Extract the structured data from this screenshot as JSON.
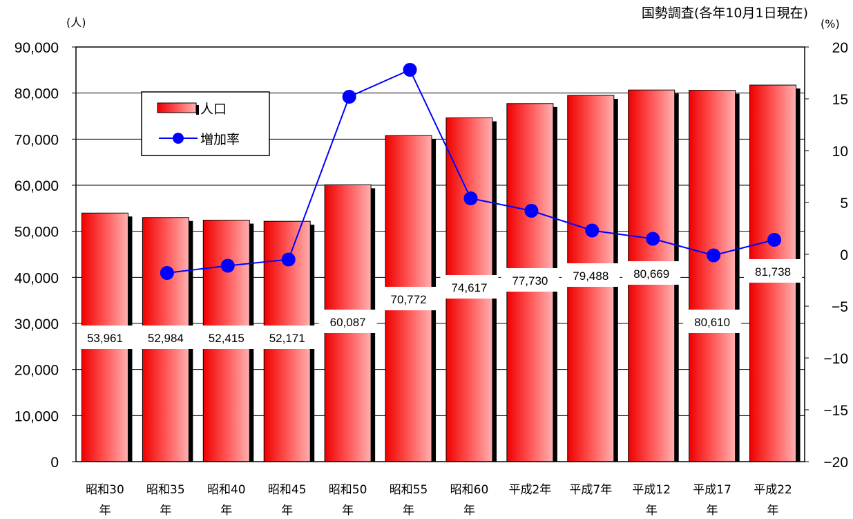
{
  "source_note": "国勢調査(各年10月1日現在)",
  "chart_data": {
    "type": "bar",
    "categories": [
      [
        "昭和30",
        "年"
      ],
      [
        "昭和35",
        "年"
      ],
      [
        "昭和40",
        "年"
      ],
      [
        "昭和45",
        "年"
      ],
      [
        "昭和50",
        "年"
      ],
      [
        "昭和55",
        "年"
      ],
      [
        "昭和60",
        "年"
      ],
      [
        "平成2年",
        ""
      ],
      [
        "平成7年",
        ""
      ],
      [
        "平成12",
        "年"
      ],
      [
        "平成17",
        "年"
      ],
      [
        "平成22",
        "年"
      ]
    ],
    "series": [
      {
        "name": "人口",
        "type": "bar",
        "axis": "left",
        "values": [
          53961,
          52984,
          52415,
          52171,
          60087,
          70772,
          74617,
          77730,
          79488,
          80669,
          80610,
          81738
        ],
        "labels": [
          "53,961",
          "52,984",
          "52,415",
          "52,171",
          "60,087",
          "70,772",
          "74,617",
          "77,730",
          "79,488",
          "80,669",
          "80,610",
          "81,738"
        ],
        "color": "#ff3333"
      },
      {
        "name": "増加率",
        "type": "line",
        "axis": "right",
        "values": [
          null,
          -1.8,
          -1.1,
          -0.5,
          15.2,
          17.8,
          5.4,
          4.2,
          2.3,
          1.5,
          -0.1,
          1.4
        ],
        "color": "#0000ff"
      }
    ],
    "y_left": {
      "unit": "(人)",
      "range": [
        0,
        90000
      ],
      "ticks": [
        "0",
        "10,000",
        "20,000",
        "30,000",
        "40,000",
        "50,000",
        "60,000",
        "70,000",
        "80,000",
        "90,000"
      ]
    },
    "y_right": {
      "unit": "(%)",
      "range": [
        -20,
        20
      ],
      "ticks": [
        "-20",
        "-15",
        "-10",
        "-5",
        "0",
        "5",
        "10",
        "15",
        "20"
      ]
    },
    "grid": true,
    "legend_position": "top-left"
  }
}
